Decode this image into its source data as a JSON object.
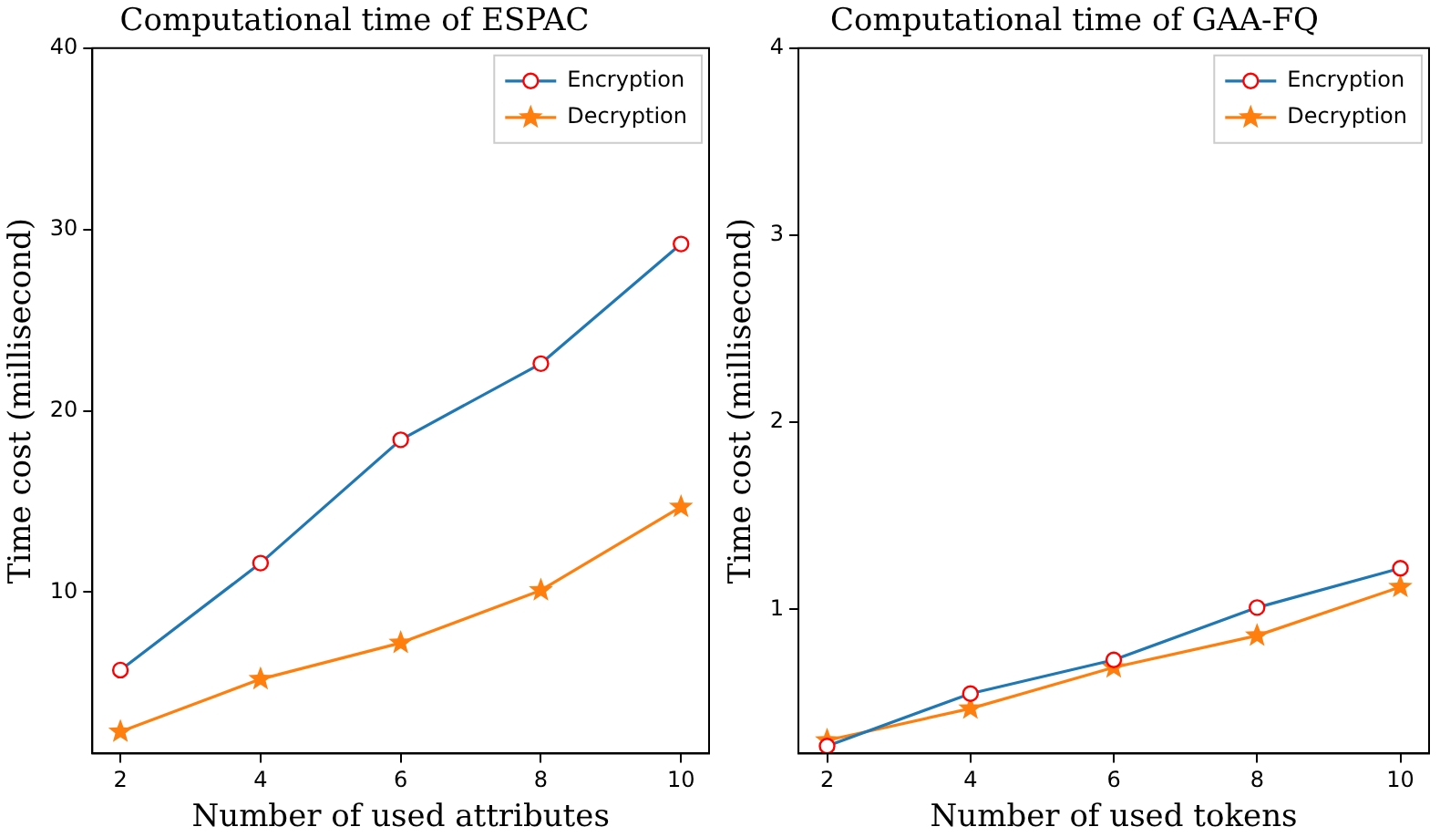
{
  "chart_data": [
    {
      "type": "line",
      "title": "Computational time of ESPAC",
      "xlabel": "Number of used attributes",
      "ylabel": "Time cost (millisecond)",
      "x": [
        2,
        4,
        6,
        8,
        10
      ],
      "xlim": [
        1.6,
        10.4
      ],
      "xticks": [
        2,
        4,
        6,
        8,
        10
      ],
      "ylim": [
        1.1,
        40
      ],
      "yticks": [
        10,
        20,
        30,
        40
      ],
      "legend": "top right",
      "grid": false,
      "series": [
        {
          "name": "Encryption",
          "color": "#1f77b4",
          "marker": "circle",
          "values": [
            5.7,
            11.6,
            18.4,
            22.6,
            29.2
          ]
        },
        {
          "name": "Decryption",
          "color": "#ff7f0e",
          "marker": "star",
          "values": [
            2.3,
            5.2,
            7.2,
            10.1,
            14.7
          ]
        }
      ]
    },
    {
      "type": "line",
      "title": "Computational time of GAA-FQ",
      "xlabel": "Number of used tokens",
      "ylabel": "Time cost (millisecond)",
      "x": [
        2,
        4,
        6,
        8,
        10
      ],
      "xlim": [
        1.6,
        10.4
      ],
      "xticks": [
        2,
        4,
        6,
        8,
        10
      ],
      "ylim": [
        0.23,
        4
      ],
      "yticks": [
        1,
        2,
        3,
        4
      ],
      "legend": "top right",
      "grid": false,
      "series": [
        {
          "name": "Encryption",
          "color": "#1f77b4",
          "marker": "circle",
          "values": [
            0.27,
            0.55,
            0.73,
            1.01,
            1.22
          ]
        },
        {
          "name": "Decryption",
          "color": "#ff7f0e",
          "marker": "star",
          "values": [
            0.3,
            0.47,
            0.69,
            0.86,
            1.12
          ]
        }
      ]
    }
  ]
}
